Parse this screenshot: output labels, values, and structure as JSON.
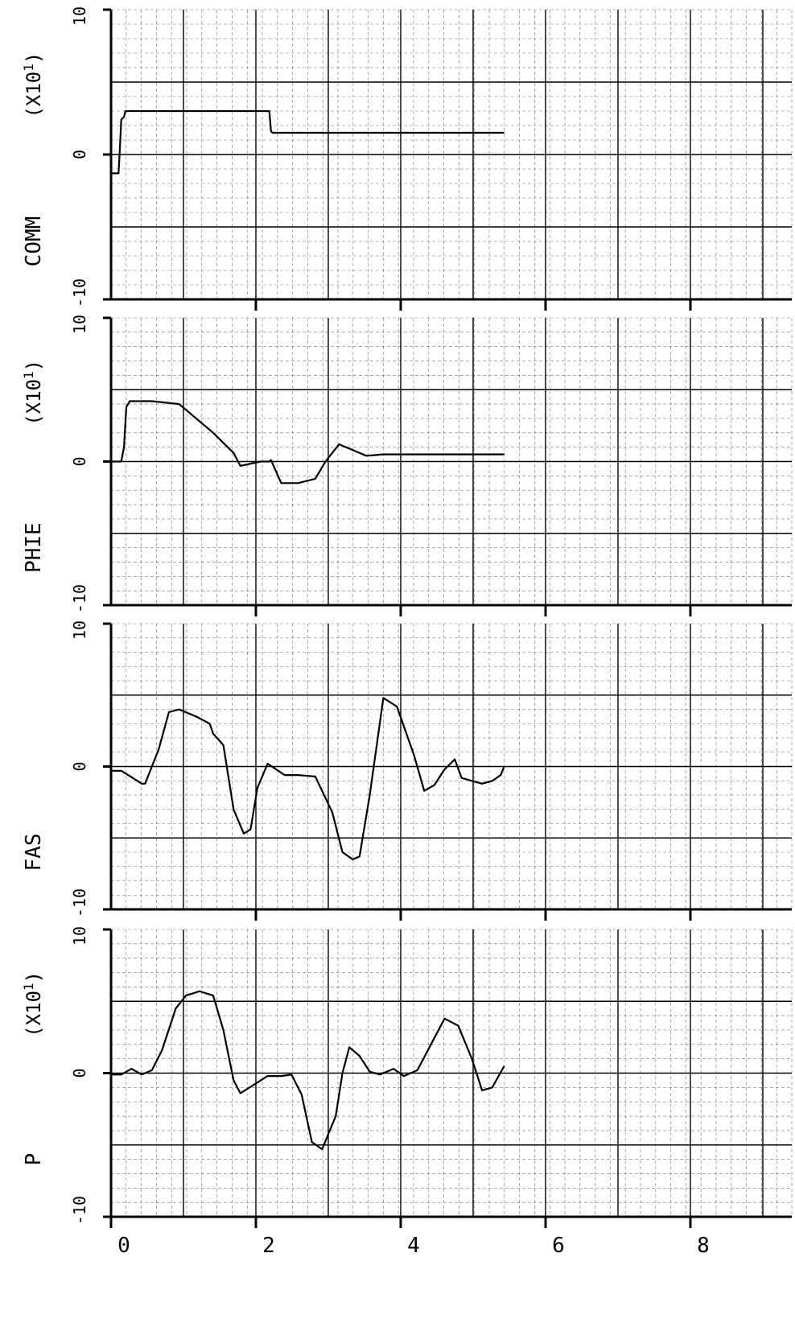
{
  "chart_data": [
    {
      "type": "line",
      "ylabel": "COMM",
      "yscale_note": "(X10^1)",
      "ylim": [
        -10,
        10
      ],
      "yticks": [
        "10",
        "0",
        "-10"
      ],
      "xlim": [
        0,
        20
      ],
      "series": [
        {
          "x": [
            0,
            0.22,
            0.25,
            0.3,
            0.38,
            0.42,
            0.5,
            2.0,
            3.0,
            3.3,
            4.65,
            4.7,
            4.75,
            6.0,
            6.2,
            6.7,
            8.0,
            9.0,
            10.5,
            11.55
          ],
          "values": [
            -1.3,
            -1.3,
            0,
            2.4,
            2.6,
            3.0,
            3.0,
            3.0,
            3.0,
            3.0,
            3.0,
            1.6,
            1.5,
            1.5,
            1.5,
            1.5,
            1.5,
            1.5,
            1.5,
            1.5
          ]
        }
      ]
    },
    {
      "type": "line",
      "ylabel": "PHIE",
      "yscale_note": "(X10^1)",
      "ylim": [
        -10,
        10
      ],
      "yticks": [
        "10",
        "0",
        "-10"
      ],
      "xlim": [
        0,
        20
      ],
      "series": [
        {
          "x": [
            0,
            0.3,
            0.38,
            0.45,
            0.55,
            0.8,
            1.0,
            1.2,
            2.0,
            3.0,
            3.6,
            3.8,
            4.4,
            4.65,
            4.7,
            5.0,
            5.5,
            6.0,
            6.3,
            6.7,
            7.5,
            8.0,
            8.6,
            9.0,
            10.5,
            11.55
          ],
          "values": [
            0,
            0,
            1.0,
            3.8,
            4.2,
            4.2,
            4.2,
            4.2,
            4.0,
            2.0,
            0.6,
            -0.3,
            0,
            0,
            0.1,
            -1.5,
            -1.5,
            -1.2,
            0,
            1.2,
            0.4,
            0.5,
            0.5,
            0.5,
            0.5,
            0.5
          ]
        }
      ]
    },
    {
      "type": "line",
      "ylabel": "FAS",
      "ylim": [
        -10,
        10
      ],
      "yticks": [
        "10",
        "0",
        "-10"
      ],
      "xlim": [
        0,
        20
      ],
      "series": [
        {
          "x": [
            0,
            0.3,
            0.5,
            0.9,
            1.0,
            1.4,
            1.7,
            2.0,
            2.5,
            2.9,
            3.0,
            3.3,
            3.6,
            3.9,
            4.1,
            4.3,
            4.6,
            5.1,
            5.5,
            6.0,
            6.5,
            6.8,
            7.1,
            7.3,
            7.6,
            8.0,
            8.4,
            8.9,
            9.2,
            9.5,
            9.8,
            10.1,
            10.3,
            10.6,
            10.9,
            11.2,
            11.45,
            11.55
          ],
          "values": [
            -0.3,
            -0.3,
            -0.6,
            -1.2,
            -1.2,
            1.2,
            3.8,
            4.0,
            3.5,
            3.0,
            2.3,
            1.5,
            -3.0,
            -4.7,
            -4.4,
            -1.5,
            0.2,
            -0.6,
            -0.6,
            -0.7,
            -3.2,
            -6.0,
            -6.5,
            -6.3,
            -2.0,
            4.8,
            4.2,
            0.8,
            -1.7,
            -1.3,
            -0.2,
            0.5,
            -0.8,
            -1.0,
            -1.2,
            -1.0,
            -0.6,
            0
          ]
        }
      ]
    },
    {
      "type": "line",
      "ylabel": "P",
      "yscale_note": "(X10^1)",
      "ylim": [
        -10,
        10
      ],
      "yticks": [
        "10",
        "0",
        "-10"
      ],
      "xlim": [
        0,
        20
      ],
      "xticks": [
        "0",
        "2",
        "4",
        "6",
        "8"
      ],
      "series": [
        {
          "x": [
            0,
            0.3,
            0.6,
            0.9,
            1.2,
            1.5,
            1.9,
            2.2,
            2.6,
            3.0,
            3.3,
            3.6,
            3.8,
            4.2,
            4.6,
            5.0,
            5.3,
            5.6,
            5.9,
            6.2,
            6.6,
            6.8,
            7.0,
            7.3,
            7.6,
            7.9,
            8.3,
            8.6,
            9.0,
            9.4,
            9.8,
            10.2,
            10.6,
            10.9,
            11.2,
            11.55
          ],
          "values": [
            -0.1,
            -0.1,
            0.3,
            -0.1,
            0.2,
            1.6,
            4.5,
            5.4,
            5.7,
            5.4,
            3.0,
            -0.5,
            -1.4,
            -0.8,
            -0.2,
            -0.2,
            -0.1,
            -1.5,
            -4.8,
            -5.3,
            -3.0,
            0,
            1.8,
            1.2,
            0.1,
            -0.1,
            0.3,
            -0.2,
            0.2,
            2.0,
            3.8,
            3.3,
            1.0,
            -1.2,
            -1.0,
            0.5
          ]
        }
      ]
    }
  ]
}
